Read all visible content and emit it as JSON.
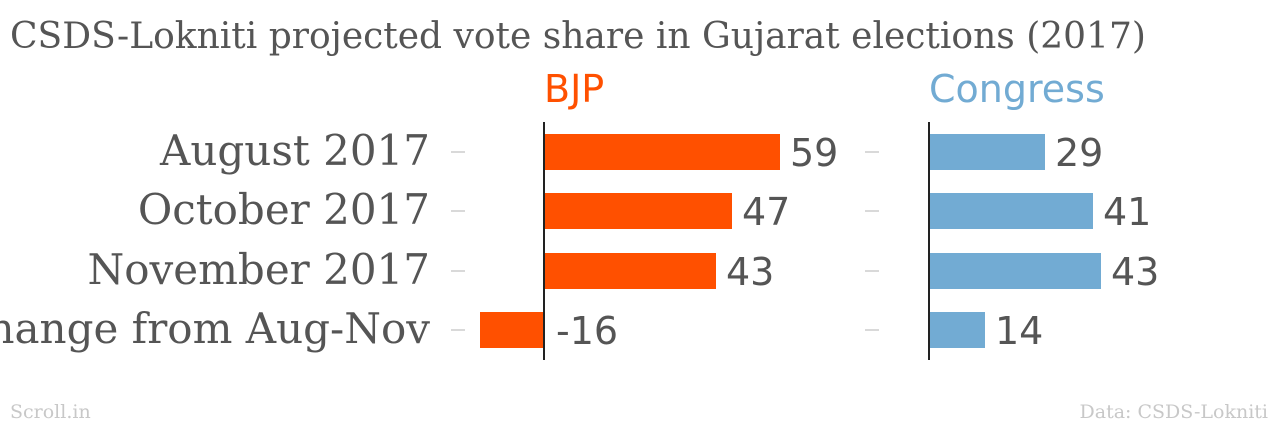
{
  "title": "CSDS-Lokniti projected vote share in Gujarat elections (2017)",
  "footer": {
    "source_left": "Scroll.in",
    "source_right": "Data: CSDS-Lokniti"
  },
  "chart_data": {
    "type": "bar",
    "orientation": "horizontal",
    "title": "CSDS-Lokniti projected vote share in Gujarat elections (2017)",
    "categories": [
      "August 2017",
      "October 2017",
      "November 2017",
      "Change from Aug-Nov"
    ],
    "series": [
      {
        "name": "BJP",
        "color": "#ff5000",
        "values": [
          59,
          47,
          43,
          -16
        ]
      },
      {
        "name": "Congress",
        "color": "#72abd3",
        "values": [
          29,
          41,
          43,
          14
        ]
      }
    ],
    "layout": "small-multiples",
    "grid": false
  }
}
